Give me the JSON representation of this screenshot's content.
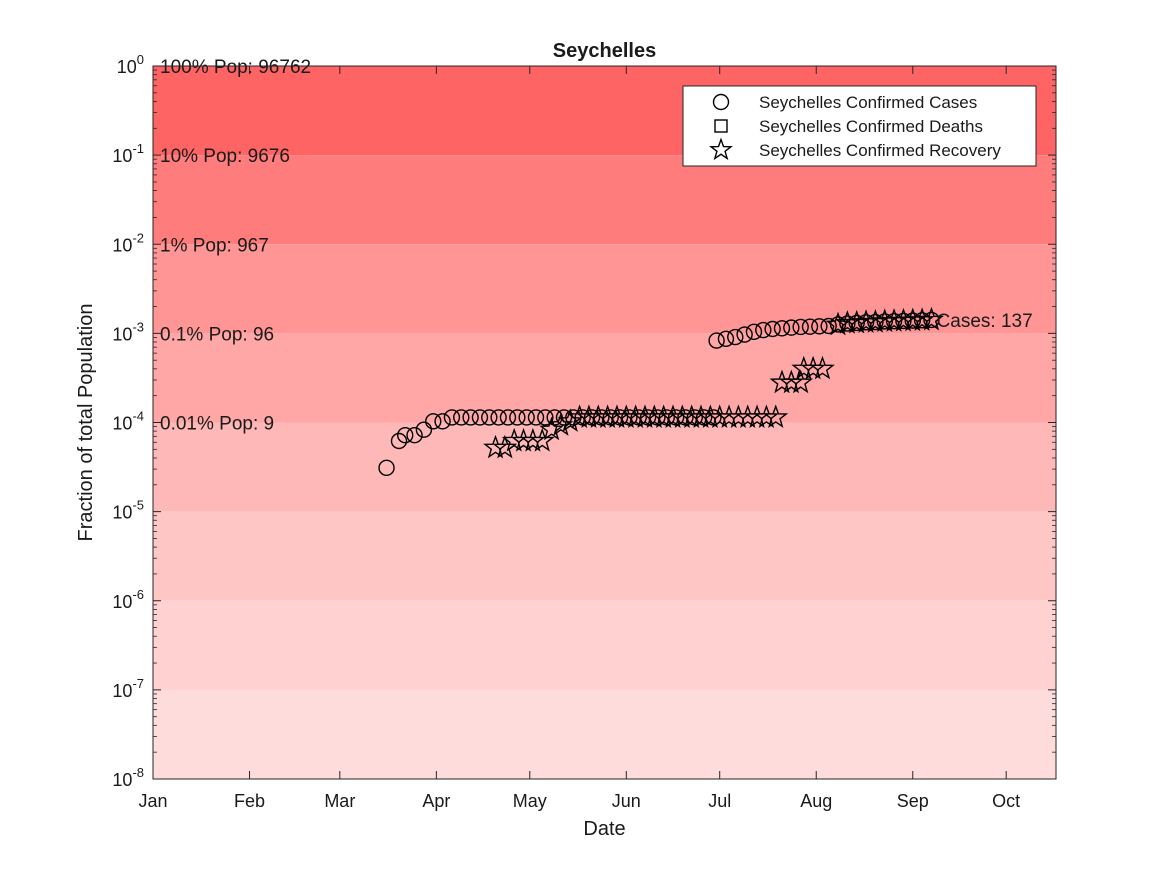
{
  "chart_data": {
    "type": "scatter",
    "title": "Seychelles",
    "xlabel": "Date",
    "ylabel": "Fraction of total Population",
    "y_scale": "log",
    "ylim": [
      1e-08,
      1
    ],
    "xlim": [
      0,
      290
    ],
    "x_ticks": [
      {
        "label": "Jan",
        "day": 0
      },
      {
        "label": "Feb",
        "day": 31
      },
      {
        "label": "Mar",
        "day": 60
      },
      {
        "label": "Apr",
        "day": 91
      },
      {
        "label": "May",
        "day": 121
      },
      {
        "label": "Jun",
        "day": 152
      },
      {
        "label": "Jul",
        "day": 182
      },
      {
        "label": "Aug",
        "day": 213
      },
      {
        "label": "Sep",
        "day": 244
      },
      {
        "label": "Oct",
        "day": 274
      }
    ],
    "y_ticks": [
      {
        "base": "10",
        "exp": "0",
        "value": 1
      },
      {
        "base": "10",
        "exp": "-1",
        "value": 0.1
      },
      {
        "base": "10",
        "exp": "-2",
        "value": 0.01
      },
      {
        "base": "10",
        "exp": "-3",
        "value": 0.001
      },
      {
        "base": "10",
        "exp": "-4",
        "value": 0.0001
      },
      {
        "base": "10",
        "exp": "-5",
        "value": 1e-05
      },
      {
        "base": "10",
        "exp": "-6",
        "value": 1e-06
      },
      {
        "base": "10",
        "exp": "-7",
        "value": 1e-07
      },
      {
        "base": "10",
        "exp": "-8",
        "value": 1e-08
      }
    ],
    "bands": [
      {
        "from": 0.1,
        "to": 1,
        "color": "#ff6464"
      },
      {
        "from": 0.01,
        "to": 0.1,
        "color": "#ff7c7c"
      },
      {
        "from": 0.001,
        "to": 0.01,
        "color": "#ff9595"
      },
      {
        "from": 0.0001,
        "to": 0.001,
        "color": "#ffa7a7"
      },
      {
        "from": 1e-05,
        "to": 0.0001,
        "color": "#ffb8b8"
      },
      {
        "from": 1e-06,
        "to": 1e-05,
        "color": "#ffc6c6"
      },
      {
        "from": 1e-07,
        "to": 1e-06,
        "color": "#ffd1d1"
      },
      {
        "from": 1e-08,
        "to": 1e-07,
        "color": "#ffdcdc"
      }
    ],
    "band_labels": [
      {
        "text": "100% Pop: 96762",
        "value": 1
      },
      {
        "text": "10% Pop: 9676",
        "value": 0.1
      },
      {
        "text": "1% Pop: 967",
        "value": 0.01
      },
      {
        "text": "0.1% Pop: 96",
        "value": 0.001
      },
      {
        "text": "0.01% Pop: 9",
        "value": 0.0001
      }
    ],
    "legend": {
      "position": "top-right",
      "entries": [
        {
          "name": "Seychelles Confirmed Cases",
          "marker": "circle"
        },
        {
          "name": "Seychelles Confirmed Deaths",
          "marker": "square"
        },
        {
          "name": "Seychelles Confirmed Recovery",
          "marker": "star"
        }
      ]
    },
    "annotation": {
      "text": "Cases: 137",
      "day": 251,
      "value": 0.001416
    },
    "series": [
      {
        "name": "Seychelles Confirmed Cases",
        "marker": "circle",
        "points": [
          [
            75,
            3.1e-05
          ],
          [
            79,
            6.2e-05
          ],
          [
            81,
            7.2e-05
          ],
          [
            84,
            7.2e-05
          ],
          [
            87,
            8.3e-05
          ],
          [
            90,
            0.000103
          ],
          [
            93,
            0.000103
          ],
          [
            96,
            0.000114
          ],
          [
            99,
            0.000114
          ],
          [
            102,
            0.000114
          ],
          [
            105,
            0.000114
          ],
          [
            108,
            0.000114
          ],
          [
            111,
            0.000114
          ],
          [
            114,
            0.000114
          ],
          [
            117,
            0.000114
          ],
          [
            120,
            0.000114
          ],
          [
            123,
            0.000114
          ],
          [
            126,
            0.000114
          ],
          [
            129,
            0.000114
          ],
          [
            132,
            0.000114
          ],
          [
            135,
            0.000114
          ],
          [
            138,
            0.000114
          ],
          [
            141,
            0.000114
          ],
          [
            144,
            0.000114
          ],
          [
            147,
            0.000114
          ],
          [
            150,
            0.000114
          ],
          [
            153,
            0.000114
          ],
          [
            156,
            0.000114
          ],
          [
            159,
            0.000114
          ],
          [
            162,
            0.000114
          ],
          [
            165,
            0.000114
          ],
          [
            168,
            0.000114
          ],
          [
            171,
            0.000114
          ],
          [
            174,
            0.000114
          ],
          [
            177,
            0.000114
          ],
          [
            180,
            0.000114
          ],
          [
            181,
            0.00083
          ],
          [
            184,
            0.00087
          ],
          [
            187,
            0.00091
          ],
          [
            190,
            0.00097
          ],
          [
            193,
            0.00104
          ],
          [
            196,
            0.00109
          ],
          [
            199,
            0.00112
          ],
          [
            202,
            0.00114
          ],
          [
            205,
            0.00116
          ],
          [
            208,
            0.00118
          ],
          [
            211,
            0.00119
          ],
          [
            214,
            0.0012
          ],
          [
            217,
            0.00121
          ],
          [
            220,
            0.00126
          ],
          [
            223,
            0.00129
          ],
          [
            226,
            0.00131
          ],
          [
            229,
            0.00133
          ],
          [
            232,
            0.00134
          ],
          [
            235,
            0.00136
          ],
          [
            238,
            0.00137
          ],
          [
            241,
            0.00138
          ],
          [
            244,
            0.00139
          ],
          [
            247,
            0.0014
          ],
          [
            250,
            0.001416
          ]
        ]
      },
      {
        "name": "Seychelles Confirmed Deaths",
        "marker": "square",
        "points": []
      },
      {
        "name": "Seychelles Confirmed Recovery",
        "marker": "star",
        "points": [
          [
            110,
            5.2e-05
          ],
          [
            113,
            5.2e-05
          ],
          [
            116,
            6.2e-05
          ],
          [
            119,
            6.2e-05
          ],
          [
            122,
            6.2e-05
          ],
          [
            125,
            6.2e-05
          ],
          [
            128,
            8.3e-05
          ],
          [
            131,
            9.3e-05
          ],
          [
            134,
            0.000103
          ],
          [
            137,
            0.000114
          ],
          [
            140,
            0.000114
          ],
          [
            143,
            0.000114
          ],
          [
            146,
            0.000114
          ],
          [
            149,
            0.000114
          ],
          [
            152,
            0.000114
          ],
          [
            155,
            0.000114
          ],
          [
            158,
            0.000114
          ],
          [
            161,
            0.000114
          ],
          [
            164,
            0.000114
          ],
          [
            167,
            0.000114
          ],
          [
            170,
            0.000114
          ],
          [
            173,
            0.000114
          ],
          [
            176,
            0.000114
          ],
          [
            179,
            0.000114
          ],
          [
            182,
            0.000114
          ],
          [
            185,
            0.000114
          ],
          [
            188,
            0.000114
          ],
          [
            191,
            0.000114
          ],
          [
            194,
            0.000114
          ],
          [
            197,
            0.000114
          ],
          [
            200,
            0.000114
          ],
          [
            202,
            0.00028
          ],
          [
            205,
            0.00028
          ],
          [
            208,
            0.00028
          ],
          [
            209,
            0.0004
          ],
          [
            212,
            0.0004
          ],
          [
            215,
            0.0004
          ],
          [
            220,
            0.00125
          ],
          [
            223,
            0.0013
          ],
          [
            226,
            0.00131
          ],
          [
            229,
            0.00133
          ],
          [
            232,
            0.00134
          ],
          [
            235,
            0.00136
          ],
          [
            238,
            0.00137
          ],
          [
            241,
            0.00138
          ],
          [
            244,
            0.00139
          ],
          [
            247,
            0.0014
          ],
          [
            250,
            0.001416
          ]
        ]
      }
    ]
  }
}
